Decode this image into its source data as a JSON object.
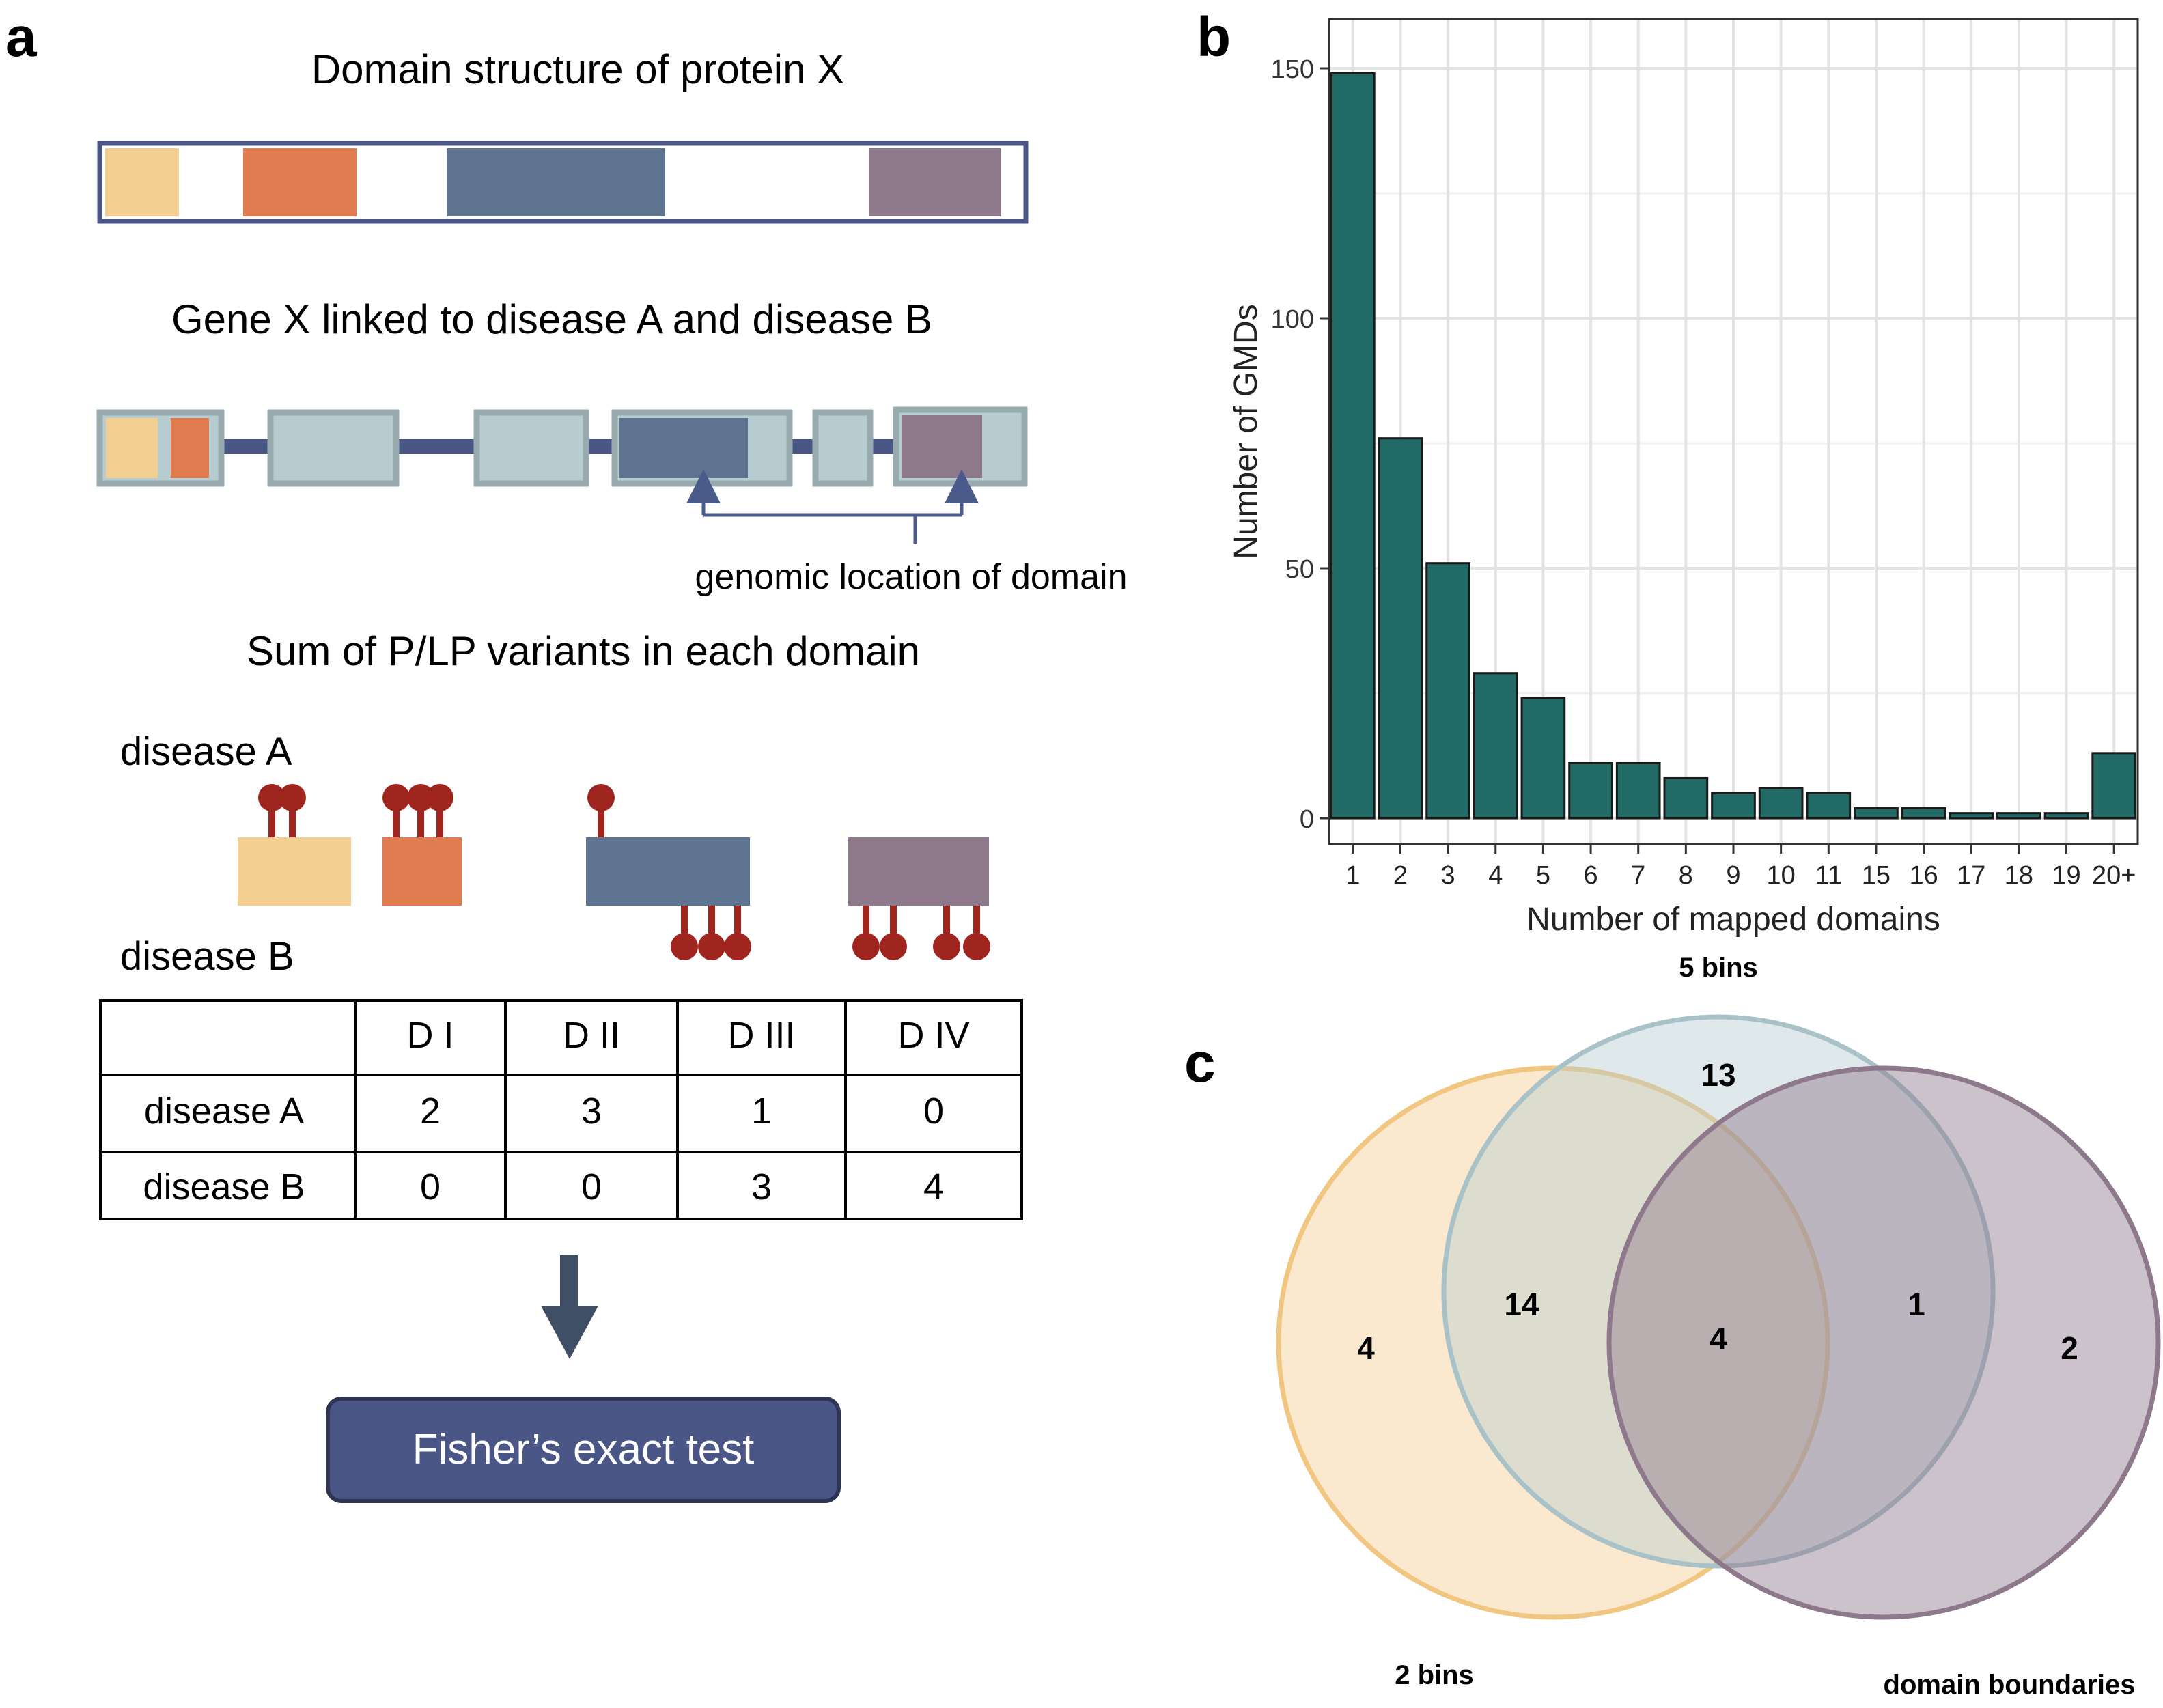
{
  "panel_a": {
    "label": "a",
    "protein_title": "Domain structure of protein X",
    "gene_title": "Gene X linked to disease A and disease B",
    "genomic_note": "genomic location of domain",
    "variant_title": "Sum of P/LP variants in each domain",
    "disease_a_label": "disease A",
    "disease_b_label": "disease B",
    "domain_colors": [
      "#F3CF92",
      "#E17B50",
      "#5F7490",
      "#8E788C"
    ],
    "variant_color": "#A0251F",
    "variants": {
      "disease_a": [
        2,
        3,
        1,
        0
      ],
      "disease_b": [
        0,
        0,
        3,
        4
      ]
    },
    "table": {
      "headers": [
        "",
        "D I",
        "D II",
        "D III",
        "D IV"
      ],
      "rows": [
        {
          "label": "disease A",
          "values": [
            "2",
            "3",
            "1",
            "0"
          ]
        },
        {
          "label": "disease B",
          "values": [
            "0",
            "0",
            "3",
            "4"
          ]
        }
      ]
    },
    "test_label": "Fisher’s exact test"
  },
  "panel_b": {
    "label": "b"
  },
  "panel_c": {
    "label": "c",
    "sets": [
      "5 bins",
      "2 bins",
      "domain boundaries"
    ],
    "regions": {
      "only_2bins": "4",
      "only_5bins": "13",
      "only_boundaries": "2",
      "bins2_and_bins5": "14",
      "bins5_and_boundaries": "1",
      "all_three": "4"
    }
  },
  "chart_data": {
    "type": "bar",
    "title": "",
    "xlabel": "Number of mapped domains",
    "ylabel": "Number of GMDs",
    "categories": [
      "1",
      "2",
      "3",
      "4",
      "5",
      "6",
      "7",
      "8",
      "9",
      "10",
      "11",
      "15",
      "16",
      "17",
      "18",
      "19",
      "20+"
    ],
    "values": [
      149,
      76,
      51,
      29,
      24,
      11,
      11,
      8,
      5,
      6,
      5,
      2,
      2,
      1,
      1,
      1,
      13
    ],
    "ylim": [
      0,
      155
    ],
    "yticks": [
      0,
      50,
      100,
      150
    ],
    "bar_color": "#226A65",
    "grid": true
  }
}
